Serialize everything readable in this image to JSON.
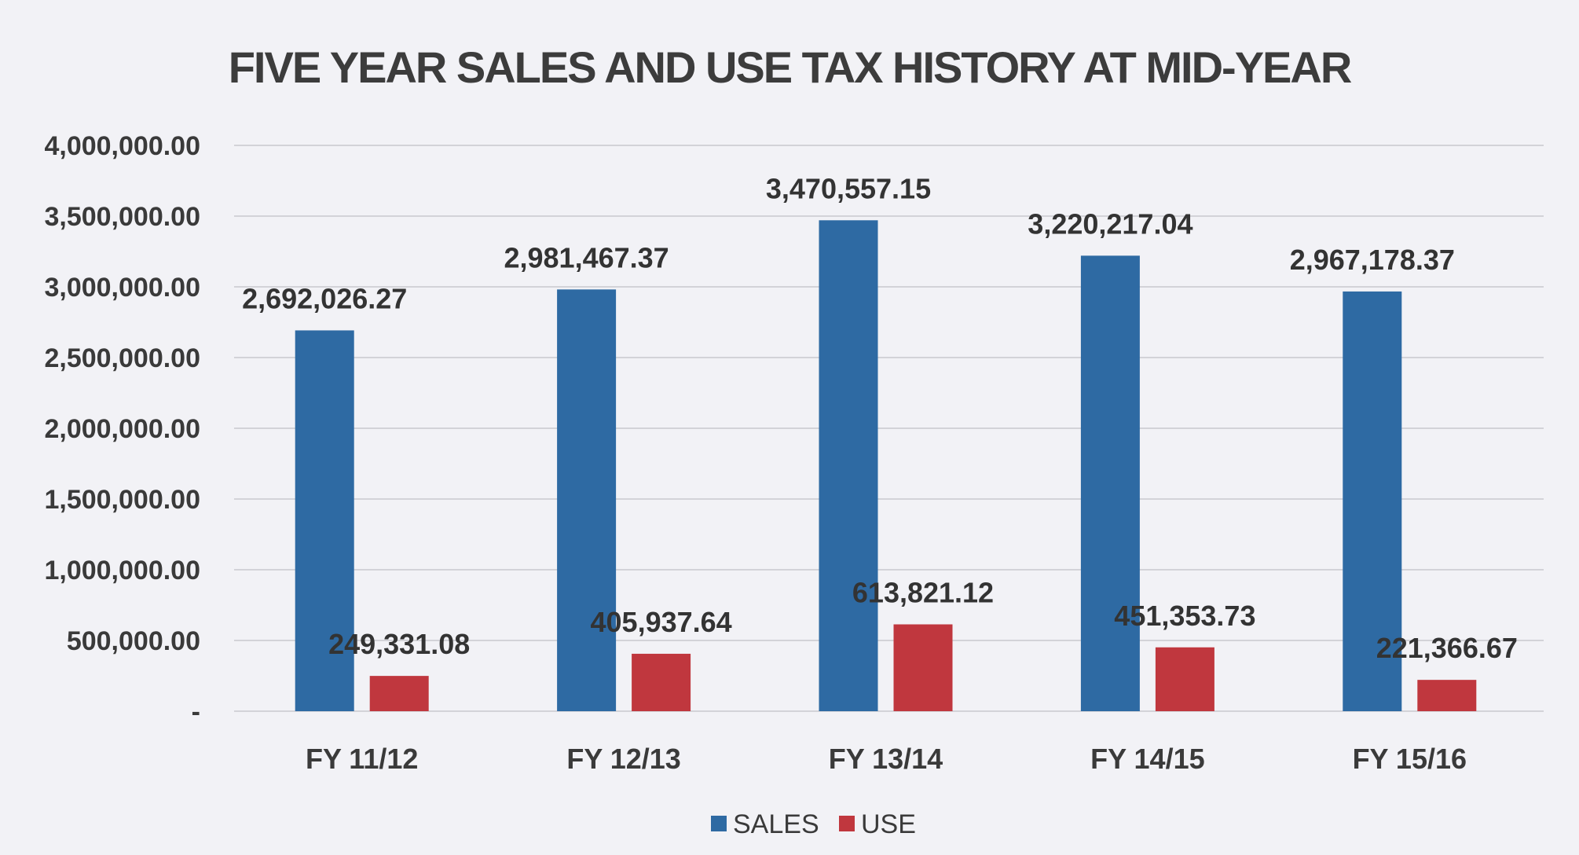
{
  "chart_data": {
    "type": "bar",
    "title": "FIVE YEAR SALES AND USE TAX HISTORY AT MID-YEAR",
    "xlabel": "",
    "ylabel": "",
    "categories": [
      "FY 11/12",
      "FY 12/13",
      "FY 13/14",
      "FY 14/15",
      "FY 15/16"
    ],
    "series": [
      {
        "name": "SALES",
        "color": "#2e6aa3",
        "values": [
          2692026.27,
          2981467.37,
          3470557.15,
          3220217.04,
          2967178.37
        ],
        "labels": [
          "2,692,026.27",
          "2,981,467.37",
          "3,470,557.15",
          "3,220,217.04",
          "2,967,178.37"
        ]
      },
      {
        "name": "USE",
        "color": "#c0373e",
        "values": [
          249331.08,
          405937.64,
          613821.12,
          451353.73,
          221366.67
        ],
        "labels": [
          "249,331.08",
          "405,937.64",
          "613,821.12",
          "451,353.73",
          "221,366.67"
        ]
      }
    ],
    "ylim": [
      0,
      4000000
    ],
    "yticks": [
      {
        "value": 0,
        "label": "-"
      },
      {
        "value": 500000,
        "label": "500,000.00"
      },
      {
        "value": 1000000,
        "label": "1,000,000.00"
      },
      {
        "value": 1500000,
        "label": "1,500,000.00"
      },
      {
        "value": 2000000,
        "label": "2,000,000.00"
      },
      {
        "value": 2500000,
        "label": "2,500,000.00"
      },
      {
        "value": 3000000,
        "label": "3,000,000.00"
      },
      {
        "value": 3500000,
        "label": "3,500,000.00"
      },
      {
        "value": 4000000,
        "label": "4,000,000.00"
      }
    ],
    "grid": true,
    "legend_position": "bottom-center"
  }
}
